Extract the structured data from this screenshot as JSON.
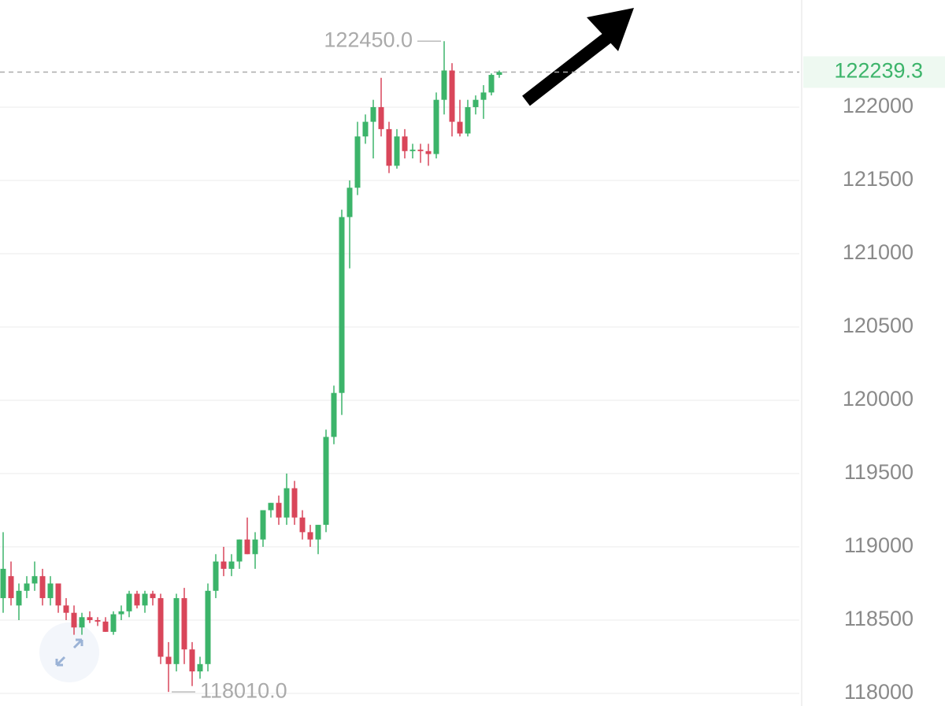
{
  "chart_data": {
    "type": "candlestick",
    "up_color": "#3cb46a",
    "down_color": "#d9465a",
    "ylim": [
      117914,
      122731
    ],
    "yticks": [
      118000,
      118500,
      119000,
      119500,
      120000,
      120500,
      121000,
      121500,
      122000
    ],
    "grid": true,
    "last_price": 122239.3,
    "max_label": {
      "value": 122450,
      "label": "122450.0"
    },
    "min_label": {
      "value": 118010,
      "label": "118010.0"
    },
    "open": [
      118650,
      118800,
      118600,
      118700,
      118750,
      118800,
      118650,
      118750,
      118600,
      118550,
      118450,
      118520,
      118500,
      118490,
      118420,
      118540,
      118560,
      118680,
      118600,
      118680,
      118650,
      118250,
      118200,
      118650,
      118300,
      118150,
      118200,
      118700,
      118900,
      118850,
      118900,
      119050,
      118950,
      119050,
      119250,
      119300,
      119200,
      119400,
      119200,
      119100,
      119050,
      119150,
      119750,
      120050,
      121250,
      121450,
      121800,
      121900,
      122000,
      121850,
      121600,
      121800,
      121700,
      121710,
      121700,
      121680,
      122050,
      122250,
      121900,
      121820,
      122000,
      122050,
      122100,
      122220
    ],
    "high": [
      119100,
      118900,
      118750,
      118800,
      118900,
      118850,
      118800,
      118750,
      118650,
      118600,
      118550,
      118560,
      118520,
      118520,
      118560,
      118600,
      118700,
      118700,
      118700,
      118700,
      118680,
      118350,
      118680,
      118720,
      118350,
      118250,
      118750,
      118950,
      119000,
      118950,
      119050,
      119200,
      119100,
      119250,
      119300,
      119350,
      119500,
      119450,
      119250,
      119150,
      119150,
      119800,
      120100,
      121300,
      121500,
      121900,
      121950,
      122050,
      122200,
      121900,
      121850,
      121850,
      121750,
      121750,
      121750,
      122100,
      122450,
      122300,
      122050,
      122050,
      122080,
      122150,
      122230,
      122250
    ],
    "low": [
      118550,
      118600,
      118500,
      118650,
      118700,
      118600,
      118600,
      118550,
      118500,
      118400,
      118400,
      118480,
      118460,
      118420,
      118400,
      118500,
      118520,
      118580,
      118550,
      118600,
      118200,
      118010,
      118150,
      118200,
      118050,
      118100,
      118150,
      118650,
      118800,
      118800,
      118850,
      118950,
      118850,
      119000,
      119200,
      119150,
      119150,
      119150,
      119050,
      119000,
      118950,
      119100,
      119700,
      119900,
      120900,
      121400,
      121750,
      121650,
      121800,
      121550,
      121580,
      121650,
      121650,
      121620,
      121600,
      121650,
      121950,
      121800,
      121800,
      121800,
      121950,
      121920,
      122080,
      122200
    ],
    "close": [
      118850,
      118650,
      118700,
      118750,
      118800,
      118650,
      118750,
      118600,
      118550,
      118450,
      118520,
      118500,
      118490,
      118420,
      118540,
      118560,
      118680,
      118600,
      118680,
      118650,
      118250,
      118200,
      118650,
      118300,
      118150,
      118200,
      118700,
      118900,
      118850,
      118900,
      119050,
      118950,
      119050,
      119250,
      119300,
      119200,
      119400,
      119200,
      119100,
      119050,
      119150,
      119750,
      120050,
      121250,
      121450,
      121800,
      121900,
      122000,
      121850,
      121600,
      121800,
      121700,
      121710,
      121700,
      121680,
      122050,
      122250,
      121900,
      121820,
      122000,
      122050,
      122100,
      122220,
      122239.3
    ]
  }
}
